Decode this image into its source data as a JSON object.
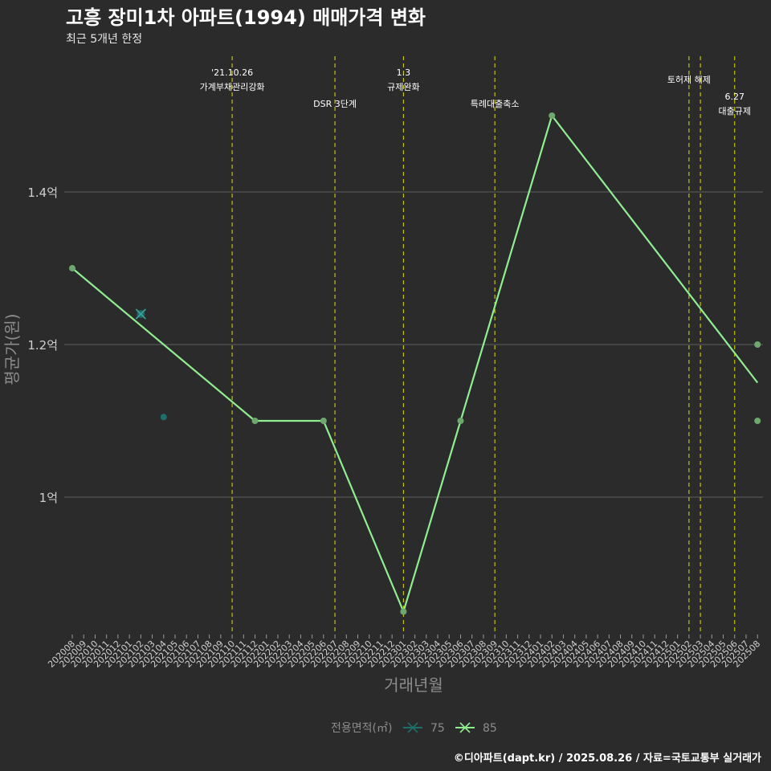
{
  "header": {
    "title": "고흥 장미1차 아파트(1994) 매매가격 변화",
    "subtitle": "최근 5개년 한정"
  },
  "caption": "©디아파트(dapt.kr) / 2025.08.26 / 자료=국토교통부 실거래가",
  "colors": {
    "background": "#2b2b2b",
    "grid": "#5f5f5f",
    "event_line": "#e0e000",
    "series_75": "#1e6f6a",
    "series_85": "#90ee90"
  },
  "chart_data": {
    "type": "line",
    "xlabel": "거래년월",
    "ylabel": "평균가(원)",
    "legend_title": "전용면적(㎡)",
    "legend_position": "bottom",
    "grid": true,
    "ylim": [
      0.82,
      1.58
    ],
    "y_ticks": [
      {
        "value": 1.0,
        "label": "1억"
      },
      {
        "value": 1.2,
        "label": "1.2억"
      },
      {
        "value": 1.4,
        "label": "1.4억"
      }
    ],
    "x_categories": [
      "202008",
      "202009",
      "202010",
      "202011",
      "202012",
      "202101",
      "202102",
      "202103",
      "202104",
      "202105",
      "202106",
      "202107",
      "202108",
      "202109",
      "202110",
      "202111",
      "202112",
      "202201",
      "202202",
      "202203",
      "202204",
      "202205",
      "202206",
      "202207",
      "202208",
      "202209",
      "202210",
      "202211",
      "202212",
      "202301",
      "202302",
      "202303",
      "202304",
      "202305",
      "202306",
      "202307",
      "202308",
      "202309",
      "202310",
      "202311",
      "202312",
      "202401",
      "202402",
      "202403",
      "202404",
      "202405",
      "202406",
      "202407",
      "202408",
      "202409",
      "202410",
      "202411",
      "202412",
      "202501",
      "202502",
      "202503",
      "202504",
      "202505",
      "202506",
      "202507",
      "202508"
    ],
    "series": [
      {
        "name": "75",
        "color": "#1e6f6a",
        "line": [],
        "points": [
          {
            "x": "202102",
            "y": 1.24,
            "marker": "x"
          },
          {
            "x": "202104",
            "y": 1.105,
            "marker": "dot"
          }
        ]
      },
      {
        "name": "85",
        "color": "#90ee90",
        "line": [
          {
            "x": "202008",
            "y": 1.3
          },
          {
            "x": "202112",
            "y": 1.1
          },
          {
            "x": "202206",
            "y": 1.1
          },
          {
            "x": "202301",
            "y": 0.85
          },
          {
            "x": "202306",
            "y": 1.1
          },
          {
            "x": "202402",
            "y": 1.5
          },
          {
            "x": "202508",
            "y": 1.15
          }
        ],
        "points": [
          {
            "x": "202008",
            "y": 1.3
          },
          {
            "x": "202112",
            "y": 1.1
          },
          {
            "x": "202206",
            "y": 1.1
          },
          {
            "x": "202301",
            "y": 0.85
          },
          {
            "x": "202306",
            "y": 1.1
          },
          {
            "x": "202402",
            "y": 1.5
          },
          {
            "x": "202508",
            "y": 1.2
          },
          {
            "x": "202508",
            "y": 1.1
          }
        ]
      }
    ],
    "events": [
      {
        "x": "202110",
        "lines": [
          "'21.10.26",
          "가계부채관리강화"
        ],
        "level": 0
      },
      {
        "x": "202207",
        "lines": [
          "DSR 3단계"
        ],
        "level": 2
      },
      {
        "x": "202301",
        "lines": [
          "1.3",
          "규제완화"
        ],
        "level": 0
      },
      {
        "x": "202309",
        "lines": [
          "특례대출축소"
        ],
        "level": 2
      },
      {
        "x": "202502",
        "lines": [
          "토허제 해제"
        ],
        "level": 1
      },
      {
        "x": "202503",
        "lines": [],
        "level": 1
      },
      {
        "x": "202506",
        "lines": [
          "6.27",
          "대출규제"
        ],
        "level": 3
      }
    ]
  }
}
